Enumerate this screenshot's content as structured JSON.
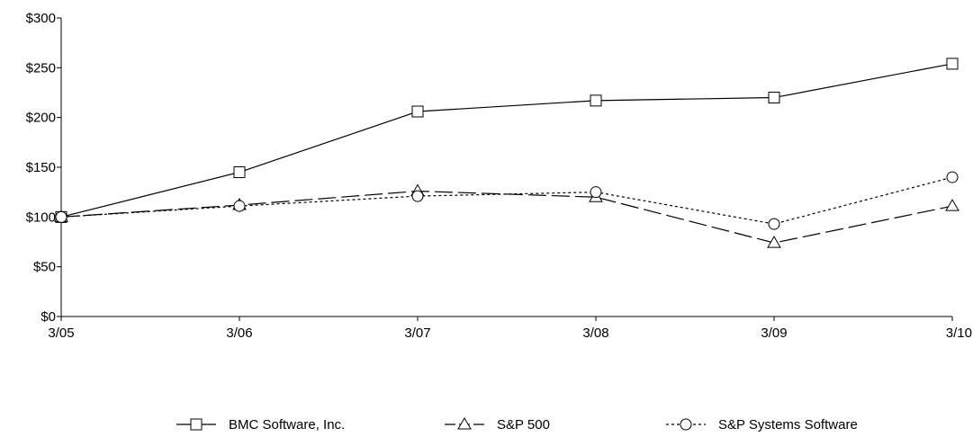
{
  "chart_data": {
    "type": "line",
    "title": "",
    "xlabel": "",
    "ylabel": "",
    "categories": [
      "3/05",
      "3/06",
      "3/07",
      "3/08",
      "3/09",
      "3/10"
    ],
    "ylim": [
      0,
      300
    ],
    "yticks": [
      0,
      50,
      100,
      150,
      200,
      250,
      300
    ],
    "ytick_labels": [
      "$0",
      "$50",
      "$100",
      "$150",
      "$200",
      "$250",
      "$300"
    ],
    "grid": false,
    "legend_position": "bottom",
    "series": [
      {
        "name": "BMC Software, Inc.",
        "marker": "square",
        "line_style": "solid",
        "color": "#000000",
        "values": [
          100,
          145,
          206,
          217,
          220,
          254
        ]
      },
      {
        "name": "S&P 500",
        "marker": "triangle",
        "line_style": "long-dash",
        "color": "#000000",
        "values": [
          100,
          112,
          126,
          120,
          74,
          111
        ]
      },
      {
        "name": "S&P Systems Software",
        "marker": "circle",
        "line_style": "short-dash",
        "color": "#000000",
        "values": [
          100,
          111,
          121,
          125,
          93,
          140
        ]
      }
    ]
  }
}
